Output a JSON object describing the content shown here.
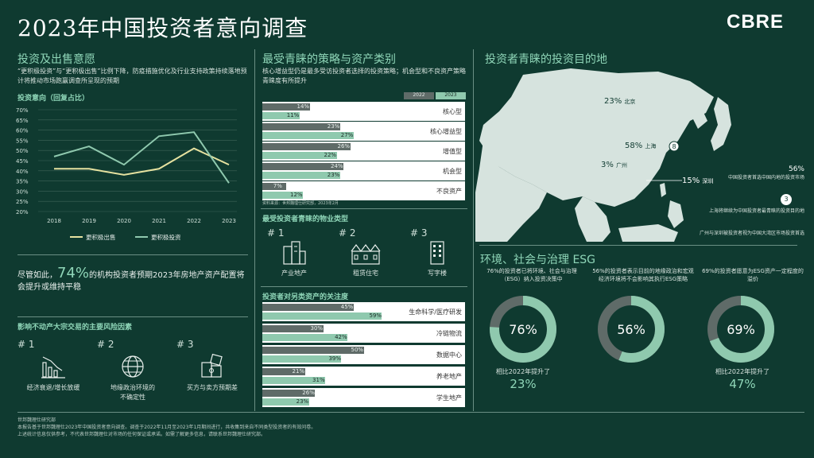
{
  "header": {
    "title": "2023年中国投资者意向调查",
    "logo": "CBRE"
  },
  "section1": {
    "title": "投资及出售意愿",
    "desc": "“更积极投资”与“更积极出售”比例下降，防疫措施优化及行业支持政策持续落地预计将推动市场跑赢调查所呈现的预期",
    "chart_title": "投资意向（回复占比）"
  },
  "chart_data": [
    {
      "type": "line",
      "title": "投资意向（回复占比）",
      "x": [
        "2018",
        "2019",
        "2020",
        "2021",
        "2022",
        "2023"
      ],
      "y_ticks": [
        "20%",
        "25%",
        "30%",
        "35%",
        "40%",
        "45%",
        "50%",
        "55%",
        "60%",
        "65%",
        "70%"
      ],
      "ylim": [
        20,
        70
      ],
      "series": [
        {
          "name": "更积极出售",
          "values": [
            41,
            41,
            38,
            41,
            51,
            43
          ],
          "color": "#e6e2a0"
        },
        {
          "name": "更积极投资",
          "values": [
            47,
            52,
            43,
            57,
            59,
            34
          ],
          "color": "#8fc9ae"
        }
      ]
    },
    {
      "type": "bar",
      "title": "最受青睐的策略与资产类别",
      "categories": [
        "核心型",
        "核心增益型",
        "增值型",
        "机会型",
        "不良资产"
      ],
      "series": [
        {
          "name": "2022",
          "values": [
            14,
            23,
            26,
            24,
            7
          ]
        },
        {
          "name": "2023",
          "values": [
            11,
            27,
            22,
            23,
            12
          ]
        }
      ],
      "xlim": [
        0,
        60
      ]
    },
    {
      "type": "bar",
      "title": "投资者对另类资产的关注度",
      "categories": [
        "生命科学/医疗研发",
        "冷链物流",
        "数据中心",
        "养老地产",
        "学生地产"
      ],
      "series": [
        {
          "name": "2022",
          "values": [
            45,
            30,
            50,
            21,
            26
          ]
        },
        {
          "name": "2023",
          "values": [
            59,
            42,
            39,
            31,
            23
          ]
        }
      ],
      "xlim": [
        0,
        100
      ]
    }
  ],
  "section1b": {
    "sentence_pre": "尽管如此，",
    "big_pct": "74%",
    "sentence_post": "的机构投资者预期2023年房地产资产配置将会提升或维持平稳"
  },
  "risk": {
    "title": "影响不动产大宗交易的主要风险因素",
    "items": [
      {
        "num": "# 1",
        "label": "经济衰退/增长放缓"
      },
      {
        "num": "# 2",
        "label": "地缘政治环境的\n不确定性"
      },
      {
        "num": "# 3",
        "label": "买方与卖方预期差"
      }
    ]
  },
  "section2": {
    "title": "最受青睐的策略与资产类别",
    "desc": "核心增益型仍是最多受访投资者选择的投资策略；机会型和不良资产策略青睐度有所提升",
    "legend": [
      "2022",
      "2023"
    ],
    "note": "资料来源：世邦魏理仕研究部，2023年2月"
  },
  "property": {
    "title": "最受投资者青睐的物业类型",
    "items": [
      {
        "num": "# 1",
        "label": "产业地产"
      },
      {
        "num": "# 2",
        "label": "租赁住宅"
      },
      {
        "num": "# 3",
        "label": "写字楼"
      }
    ]
  },
  "alt": {
    "title": "投资者对另类资产的关注度"
  },
  "map": {
    "title": "投资者青睐的投资目的地",
    "labels": [
      {
        "pct": "23%",
        "city": "北京"
      },
      {
        "pct": "58%",
        "city": "上海"
      },
      {
        "pct": "3%",
        "city": "广州"
      },
      {
        "pct": "15%",
        "city": "深圳"
      }
    ],
    "note_pct": "56%",
    "note1": "中国投资者首选中国内地的投资市场",
    "note2": "上海将继续为中国投资者最青睐的投资目的地",
    "note3": "广州与深圳被投资者视为中国大湾区市场投资首选",
    "pins": [
      "8",
      "3"
    ]
  },
  "esg": {
    "title": "环境、社会与治理 ESG",
    "items": [
      {
        "desc": "76%的投资者已将环境、社会与治理（ESG）纳入投资决策中",
        "pct": 76,
        "pct_label": "76%",
        "change": "相比2022年提升了",
        "change_val": "23%"
      },
      {
        "desc": "56%的投资者表示目前的地缘政治和宏观经济环境将不会影响其执行ESG策略",
        "pct": 56,
        "pct_label": "56%",
        "change": "",
        "change_val": ""
      },
      {
        "desc": "69%的投资者愿意为ESG资产一定程度的溢价",
        "pct": 69,
        "pct_label": "69%",
        "change": "相比2022年提升了",
        "change_val": "47%"
      }
    ]
  },
  "footer": {
    "line1": "世邦魏理仕研究部",
    "line2": "本报告基于世邦魏理仕2023年中国投资者意向调查。调查于2022年11月至2023年1月期间进行，共收集到来自不同类型投资者的有效问卷。",
    "line3": "上述统计信息仅供参考，不代表世邦魏理仕对市场的任何保证或承诺。如需了解更多信息，请联系世邦魏理仕研究部。"
  }
}
